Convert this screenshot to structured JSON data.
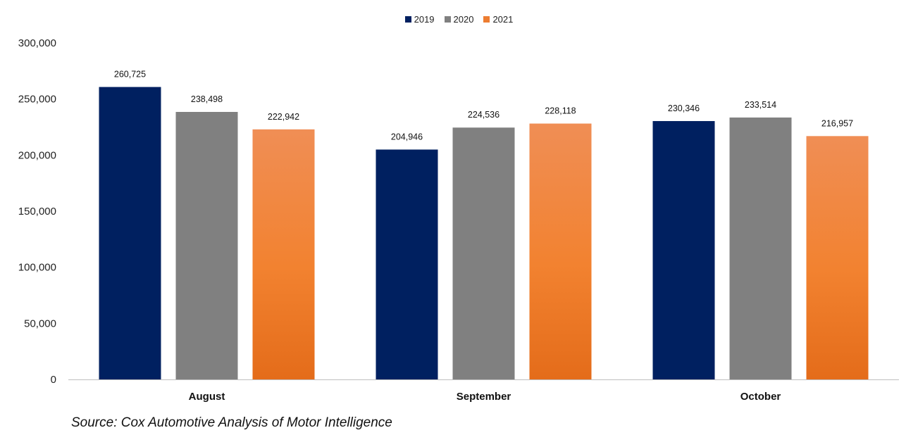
{
  "chart_data": {
    "type": "bar",
    "categories": [
      "August",
      "September",
      "October"
    ],
    "series": [
      {
        "name": "2019",
        "values": [
          260725,
          204946,
          230346
        ],
        "color": "#002060",
        "labels": [
          "260,725",
          "204,946",
          "230,346"
        ]
      },
      {
        "name": "2020",
        "values": [
          238498,
          224536,
          233514
        ],
        "color": "#808080",
        "labels": [
          "238,498",
          "224,536",
          "233,514"
        ]
      },
      {
        "name": "2021",
        "values": [
          222942,
          228118,
          216957
        ],
        "color": "#ED7D31",
        "labels": [
          "222,942",
          "228,118",
          "216,957"
        ]
      }
    ],
    "ylim": [
      0,
      300000
    ],
    "yticks": [
      0,
      50000,
      100000,
      150000,
      200000,
      250000,
      300000
    ],
    "ytick_labels": [
      "0",
      "50,000",
      "100,000",
      "150,000",
      "200,000",
      "250,000",
      "300,000"
    ],
    "legend_position": "top-center",
    "grid": false,
    "source": "Source: Cox Automotive Analysis of Motor Intelligence"
  }
}
